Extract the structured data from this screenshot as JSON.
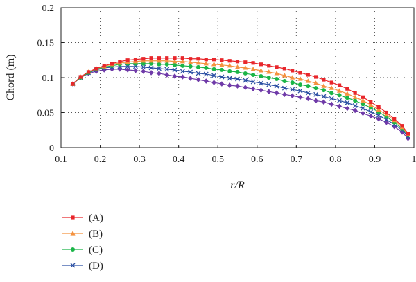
{
  "chart_data": {
    "type": "line",
    "xlabel": "r/R",
    "ylabel": "Chord (m)",
    "xlim": [
      0.1,
      1.0
    ],
    "ylim": [
      0,
      0.2
    ],
    "xticks": [
      "0.1",
      "0.2",
      "0.3",
      "0.4",
      "0.5",
      "0.6",
      "0.7",
      "0.8",
      "0.9",
      "1"
    ],
    "yticks": [
      "0",
      "0.05",
      "0.1",
      "0.15",
      "0.2"
    ],
    "grid": "dotted",
    "legend": "bottom-left",
    "series": [
      {
        "name": "(A)",
        "color": "#e8262b",
        "marker": "square",
        "x": [
          0.13,
          0.15,
          0.17,
          0.19,
          0.21,
          0.23,
          0.25,
          0.27,
          0.29,
          0.31,
          0.33,
          0.35,
          0.37,
          0.39,
          0.41,
          0.43,
          0.45,
          0.47,
          0.49,
          0.51,
          0.53,
          0.55,
          0.57,
          0.59,
          0.61,
          0.63,
          0.65,
          0.67,
          0.69,
          0.71,
          0.73,
          0.75,
          0.77,
          0.79,
          0.81,
          0.83,
          0.85,
          0.87,
          0.89,
          0.91,
          0.93,
          0.95,
          0.97,
          0.985
        ],
        "y": [
          0.091,
          0.101,
          0.108,
          0.113,
          0.117,
          0.12,
          0.123,
          0.125,
          0.126,
          0.127,
          0.128,
          0.128,
          0.128,
          0.128,
          0.128,
          0.127,
          0.127,
          0.126,
          0.126,
          0.125,
          0.124,
          0.123,
          0.122,
          0.121,
          0.119,
          0.117,
          0.115,
          0.113,
          0.11,
          0.107,
          0.104,
          0.101,
          0.097,
          0.093,
          0.089,
          0.084,
          0.078,
          0.072,
          0.065,
          0.058,
          0.05,
          0.041,
          0.031,
          0.02
        ]
      },
      {
        "name": "(B)",
        "color": "#f4923f",
        "marker": "triangle",
        "x": [
          0.13,
          0.15,
          0.17,
          0.19,
          0.21,
          0.23,
          0.25,
          0.27,
          0.29,
          0.31,
          0.33,
          0.35,
          0.37,
          0.39,
          0.41,
          0.43,
          0.45,
          0.47,
          0.49,
          0.51,
          0.53,
          0.55,
          0.57,
          0.59,
          0.61,
          0.63,
          0.65,
          0.67,
          0.69,
          0.71,
          0.73,
          0.75,
          0.77,
          0.79,
          0.81,
          0.83,
          0.85,
          0.87,
          0.89,
          0.91,
          0.93,
          0.95,
          0.97,
          0.985
        ],
        "y": [
          0.091,
          0.101,
          0.108,
          0.113,
          0.116,
          0.119,
          0.121,
          0.122,
          0.123,
          0.124,
          0.124,
          0.124,
          0.124,
          0.123,
          0.123,
          0.122,
          0.121,
          0.12,
          0.119,
          0.118,
          0.117,
          0.115,
          0.114,
          0.112,
          0.11,
          0.108,
          0.106,
          0.103,
          0.1,
          0.098,
          0.095,
          0.092,
          0.088,
          0.085,
          0.081,
          0.077,
          0.072,
          0.067,
          0.061,
          0.054,
          0.047,
          0.039,
          0.029,
          0.019
        ]
      },
      {
        "name": "(C)",
        "color": "#1bb548",
        "marker": "circle",
        "x": [
          0.13,
          0.15,
          0.17,
          0.19,
          0.21,
          0.23,
          0.25,
          0.27,
          0.29,
          0.31,
          0.33,
          0.35,
          0.37,
          0.39,
          0.41,
          0.43,
          0.45,
          0.47,
          0.49,
          0.51,
          0.53,
          0.55,
          0.57,
          0.59,
          0.61,
          0.63,
          0.65,
          0.67,
          0.69,
          0.71,
          0.73,
          0.75,
          0.77,
          0.79,
          0.81,
          0.83,
          0.85,
          0.87,
          0.89,
          0.91,
          0.93,
          0.95,
          0.97,
          0.985
        ],
        "y": [
          0.091,
          0.1,
          0.107,
          0.112,
          0.115,
          0.117,
          0.119,
          0.12,
          0.12,
          0.12,
          0.12,
          0.119,
          0.119,
          0.118,
          0.117,
          0.116,
          0.115,
          0.114,
          0.112,
          0.111,
          0.109,
          0.108,
          0.106,
          0.104,
          0.102,
          0.1,
          0.098,
          0.095,
          0.093,
          0.09,
          0.088,
          0.085,
          0.082,
          0.078,
          0.075,
          0.071,
          0.067,
          0.062,
          0.057,
          0.051,
          0.044,
          0.036,
          0.027,
          0.018
        ]
      },
      {
        "name": "(D)",
        "color": "#2b4fa3",
        "marker": "x",
        "x": [
          0.13,
          0.15,
          0.17,
          0.19,
          0.21,
          0.23,
          0.25,
          0.27,
          0.29,
          0.31,
          0.33,
          0.35,
          0.37,
          0.39,
          0.41,
          0.43,
          0.45,
          0.47,
          0.49,
          0.51,
          0.53,
          0.55,
          0.57,
          0.59,
          0.61,
          0.63,
          0.65,
          0.67,
          0.69,
          0.71,
          0.73,
          0.75,
          0.77,
          0.79,
          0.81,
          0.83,
          0.85,
          0.87,
          0.89,
          0.91,
          0.93,
          0.95,
          0.97,
          0.985
        ],
        "y": [
          0.091,
          0.1,
          0.107,
          0.111,
          0.114,
          0.115,
          0.116,
          0.116,
          0.116,
          0.115,
          0.114,
          0.113,
          0.112,
          0.111,
          0.109,
          0.108,
          0.106,
          0.105,
          0.103,
          0.101,
          0.099,
          0.098,
          0.096,
          0.094,
          0.092,
          0.09,
          0.088,
          0.085,
          0.083,
          0.081,
          0.078,
          0.076,
          0.073,
          0.07,
          0.067,
          0.064,
          0.06,
          0.056,
          0.051,
          0.046,
          0.04,
          0.033,
          0.025,
          0.016
        ]
      },
      {
        "name": "",
        "color": "#6f3aa8",
        "marker": "diamond",
        "x": [
          0.13,
          0.15,
          0.17,
          0.19,
          0.21,
          0.23,
          0.25,
          0.27,
          0.29,
          0.31,
          0.33,
          0.35,
          0.37,
          0.39,
          0.41,
          0.43,
          0.45,
          0.47,
          0.49,
          0.51,
          0.53,
          0.55,
          0.57,
          0.59,
          0.61,
          0.63,
          0.65,
          0.67,
          0.69,
          0.71,
          0.73,
          0.75,
          0.77,
          0.79,
          0.81,
          0.83,
          0.85,
          0.87,
          0.89,
          0.91,
          0.93,
          0.95,
          0.97,
          0.985
        ],
        "y": [
          0.091,
          0.1,
          0.106,
          0.109,
          0.111,
          0.112,
          0.112,
          0.111,
          0.11,
          0.109,
          0.107,
          0.106,
          0.104,
          0.102,
          0.101,
          0.099,
          0.097,
          0.095,
          0.093,
          0.091,
          0.089,
          0.088,
          0.086,
          0.084,
          0.082,
          0.08,
          0.078,
          0.076,
          0.074,
          0.072,
          0.07,
          0.067,
          0.065,
          0.062,
          0.059,
          0.056,
          0.053,
          0.049,
          0.045,
          0.041,
          0.036,
          0.03,
          0.022,
          0.013
        ]
      }
    ]
  }
}
